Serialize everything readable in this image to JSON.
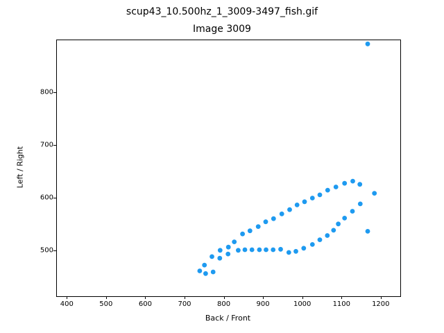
{
  "title_line1": "scup43_10.500hz_1_3009-3497_fish.gif",
  "title_line2": "Image 3009",
  "chart_data": {
    "type": "scatter",
    "title": "scup43_10.500hz_1_3009-3497_fish.gif",
    "subtitle": "Image 3009",
    "xlabel": "Back / Front",
    "ylabel": "Left / Right",
    "xlim": [
      373,
      1248
    ],
    "ylim": [
      415,
      900
    ],
    "x_ticks": [
      400,
      500,
      600,
      700,
      800,
      900,
      1000,
      1100,
      1200
    ],
    "y_ticks": [
      500,
      600,
      700,
      800
    ],
    "grid": false,
    "legend": false,
    "marker_color": "#1e9af0",
    "marker_radius_px": 3.4,
    "points": [
      [
        737,
        463
      ],
      [
        752,
        458
      ],
      [
        771,
        461
      ],
      [
        749,
        474
      ],
      [
        768,
        490
      ],
      [
        788,
        487
      ],
      [
        789,
        502
      ],
      [
        809,
        495
      ],
      [
        810,
        508
      ],
      [
        825,
        518
      ],
      [
        835,
        502
      ],
      [
        852,
        503
      ],
      [
        870,
        503
      ],
      [
        889,
        503
      ],
      [
        906,
        503
      ],
      [
        924,
        503
      ],
      [
        943,
        504
      ],
      [
        964,
        498
      ],
      [
        982,
        500
      ],
      [
        1002,
        506
      ],
      [
        1024,
        513
      ],
      [
        1043,
        522
      ],
      [
        1062,
        530
      ],
      [
        1078,
        540
      ],
      [
        1090,
        552
      ],
      [
        1106,
        563
      ],
      [
        1126,
        576
      ],
      [
        1146,
        590
      ],
      [
        846,
        533
      ],
      [
        865,
        539
      ],
      [
        886,
        547
      ],
      [
        905,
        556
      ],
      [
        925,
        562
      ],
      [
        946,
        571
      ],
      [
        966,
        579
      ],
      [
        985,
        588
      ],
      [
        1004,
        594
      ],
      [
        1024,
        601
      ],
      [
        1043,
        607
      ],
      [
        1063,
        616
      ],
      [
        1084,
        622
      ],
      [
        1106,
        629
      ],
      [
        1127,
        633
      ],
      [
        1145,
        627
      ],
      [
        1182,
        610
      ],
      [
        1165,
        538
      ],
      [
        1165,
        893
      ]
    ]
  }
}
